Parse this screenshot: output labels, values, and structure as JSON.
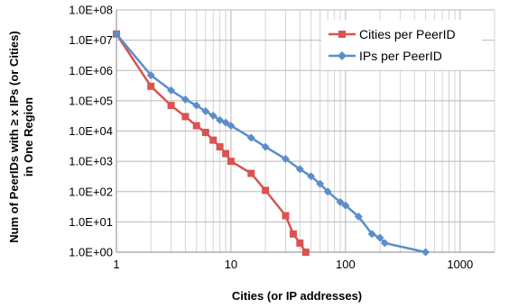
{
  "chart_data": {
    "type": "line",
    "title": "",
    "xlabel": "Cities (or IP addresses)",
    "ylabel_line1": "Num of PeerIDs with ≥ x IPs (or Cities)",
    "ylabel_line2": "in One Region",
    "x_scale": "log",
    "y_scale": "log",
    "xlim": [
      1,
      2000
    ],
    "ylim": [
      1,
      100000000
    ],
    "x_ticks": [
      1,
      10,
      100,
      1000
    ],
    "x_tick_labels": [
      "1",
      "10",
      "100",
      "1000"
    ],
    "y_ticks": [
      1,
      10,
      100,
      1000,
      10000,
      100000,
      1000000,
      10000000,
      100000000
    ],
    "y_tick_labels": [
      "1.0E+00",
      "1.0E+01",
      "1.0E+02",
      "1.0E+03",
      "1.0E+04",
      "1.0E+05",
      "1.0E+06",
      "1.0E+07",
      "1.0E+08"
    ],
    "grid": "major and minor vertical, major horizontal",
    "legend_position": "top-right",
    "series": [
      {
        "name": "Cities per PeerID",
        "color": "#d9534f",
        "marker": "square",
        "points": [
          [
            1,
            16000000
          ],
          [
            2,
            300000
          ],
          [
            3,
            70000
          ],
          [
            4,
            30000
          ],
          [
            5,
            15000
          ],
          [
            6,
            9000
          ],
          [
            7,
            5000
          ],
          [
            8,
            3000
          ],
          [
            9,
            1800
          ],
          [
            10,
            1000
          ],
          [
            15,
            400
          ],
          [
            20,
            110
          ],
          [
            30,
            16
          ],
          [
            35,
            4
          ],
          [
            40,
            2
          ],
          [
            45,
            1
          ]
        ]
      },
      {
        "name": "IPs per PeerID",
        "color": "#5b8ec9",
        "marker": "diamond",
        "points": [
          [
            1,
            16000000
          ],
          [
            2,
            700000
          ],
          [
            3,
            220000
          ],
          [
            4,
            110000
          ],
          [
            5,
            70000
          ],
          [
            6,
            45000
          ],
          [
            7,
            32000
          ],
          [
            8,
            23000
          ],
          [
            9,
            19000
          ],
          [
            10,
            15000
          ],
          [
            15,
            6000
          ],
          [
            20,
            3000
          ],
          [
            30,
            1200
          ],
          [
            40,
            550
          ],
          [
            50,
            320
          ],
          [
            60,
            180
          ],
          [
            70,
            100
          ],
          [
            90,
            45
          ],
          [
            100,
            35
          ],
          [
            130,
            15
          ],
          [
            170,
            4
          ],
          [
            200,
            3
          ],
          [
            220,
            2
          ],
          [
            500,
            1
          ]
        ]
      }
    ]
  }
}
